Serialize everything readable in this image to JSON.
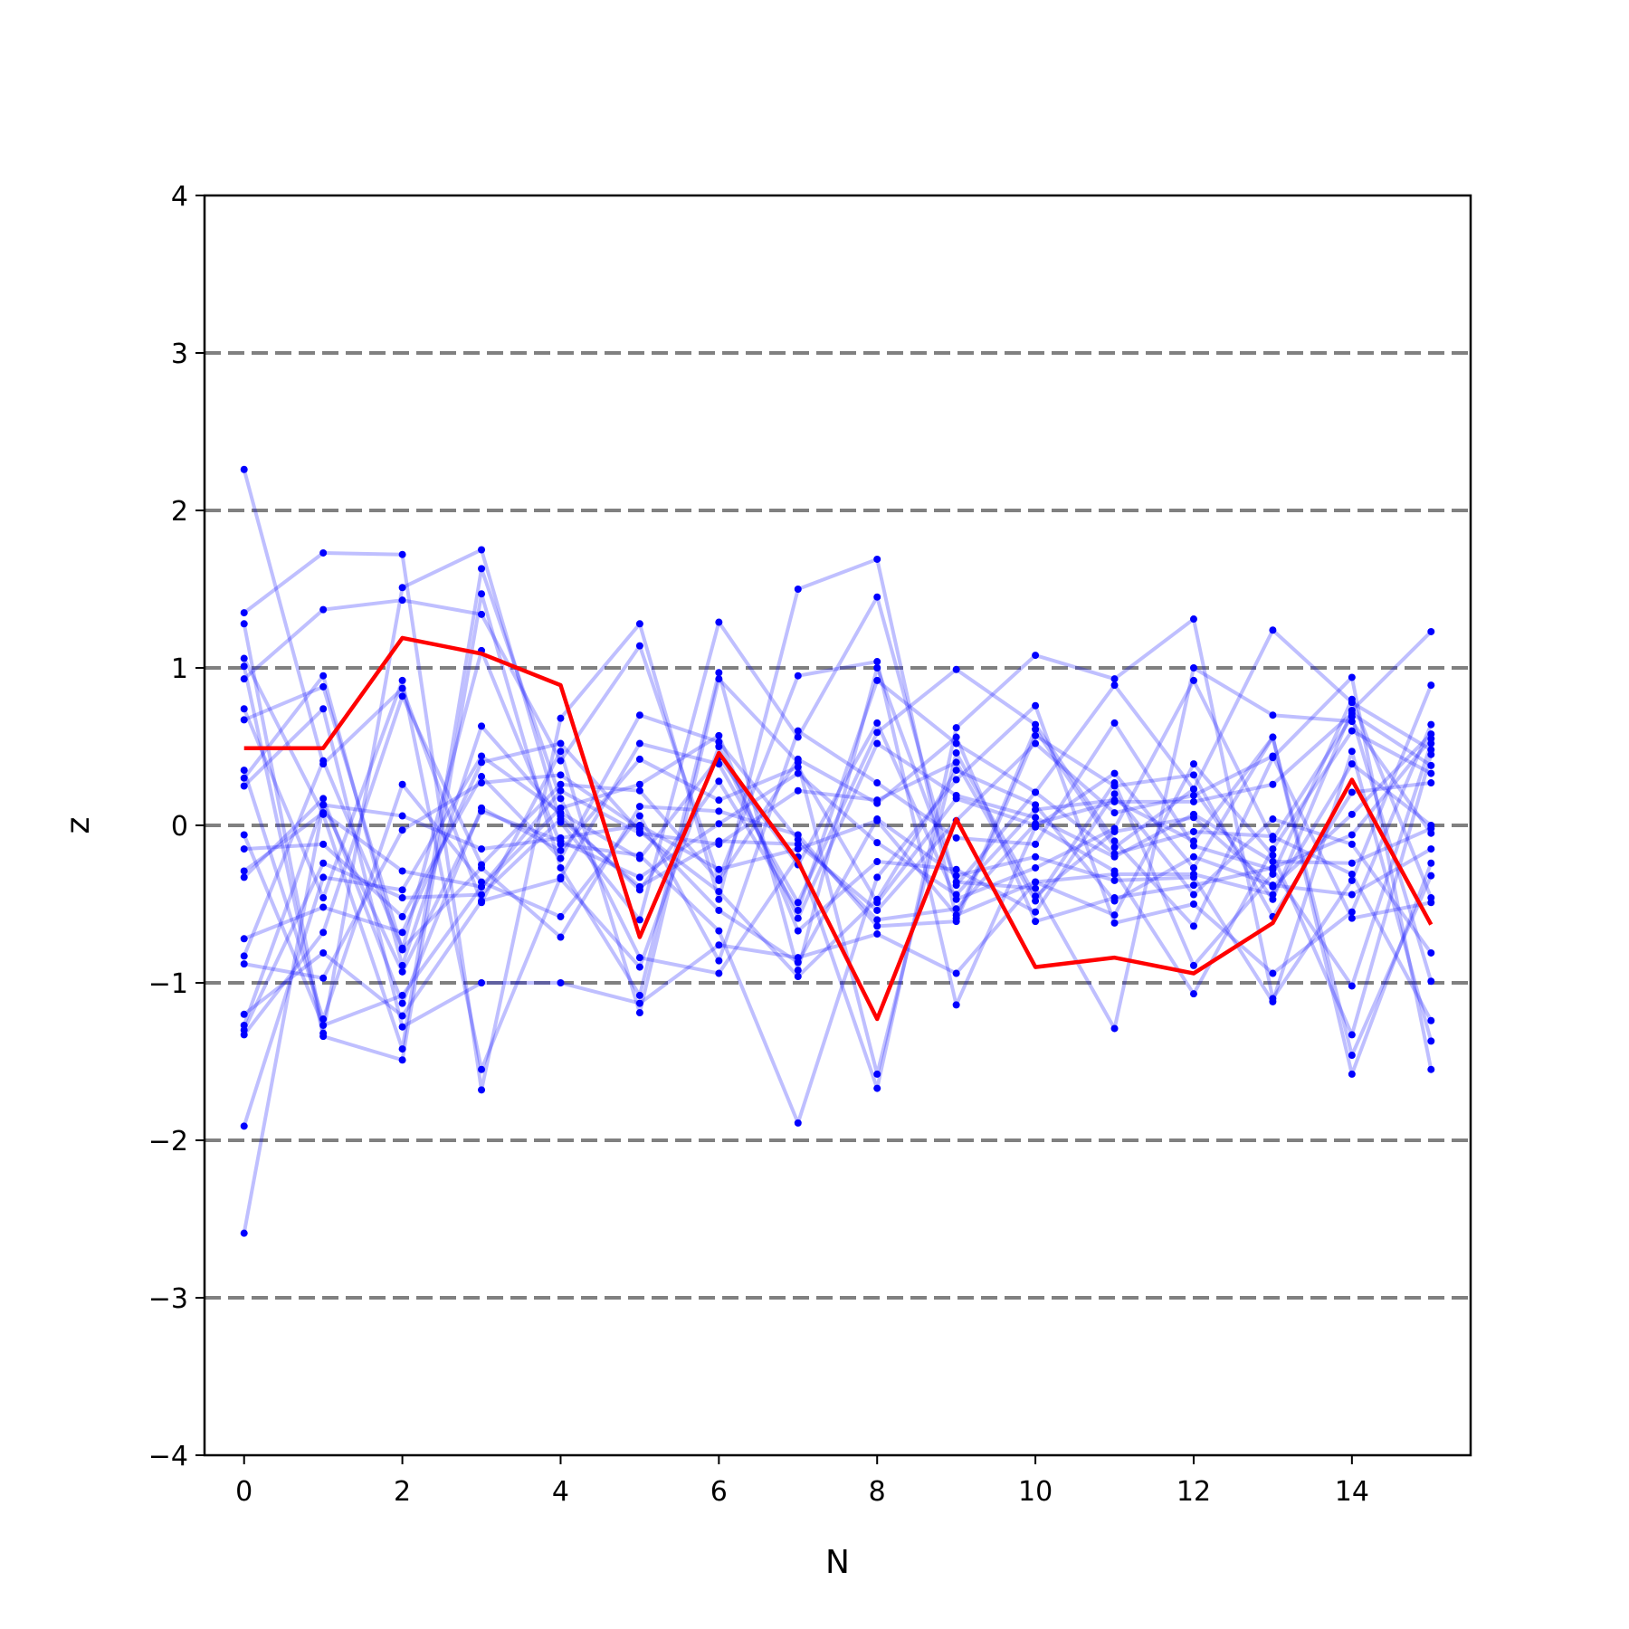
{
  "chart_data": {
    "type": "line",
    "title": "",
    "xlabel": "N",
    "ylabel": "z",
    "xlim": [
      -0.5,
      15.5
    ],
    "ylim": [
      -4,
      4
    ],
    "grid": false,
    "x_ticks": [
      0,
      2,
      4,
      6,
      8,
      10,
      12,
      14
    ],
    "x_tick_labels": [
      "0",
      "2",
      "4",
      "6",
      "8",
      "10",
      "12",
      "14"
    ],
    "y_ticks": [
      -4,
      -3,
      -2,
      -1,
      0,
      1,
      2,
      3,
      4
    ],
    "y_tick_labels": [
      "−4",
      "−3",
      "−2",
      "−1",
      "0",
      "1",
      "2",
      "3",
      "4"
    ],
    "reference_lines": [
      -3,
      -2,
      -1,
      0,
      1,
      2,
      3
    ],
    "x": [
      0,
      1,
      2,
      3,
      4,
      5,
      6,
      7,
      8,
      9,
      10,
      11,
      12,
      13,
      14,
      15
    ],
    "highlight_series": {
      "color": "#ff0000",
      "values": [
        0.49,
        0.49,
        1.19,
        1.09,
        0.89,
        -0.71,
        0.46,
        -0.23,
        -1.23,
        0.04,
        -0.9,
        -0.84,
        -0.94,
        -0.62,
        0.29,
        -0.63
      ]
    },
    "background_series": {
      "color": "#0000ff",
      "values": [
        [
          2.26,
          0.39,
          0.87,
          -0.49,
          0.47,
          -1.19,
          0.93,
          0.4,
          -1.58,
          0.46,
          -0.45,
          -0.04,
          0.05,
          -0.39,
          0.07,
          0.58
        ],
        [
          1.35,
          1.73,
          1.72,
          -1.68,
          0.68,
          1.28,
          -0.47,
          1.5,
          1.69,
          -0.59,
          0.61,
          -0.14,
          0.23,
          1.24,
          0.78,
          0.48
        ],
        [
          1.28,
          -1.32,
          1.51,
          1.75,
          0.02,
          -0.6,
          1.29,
          0.56,
          1.45,
          -0.38,
          0.21,
          0.89,
          0.23,
          -0.47,
          0.73,
          1.23
        ],
        [
          1.06,
          0.07,
          -1.42,
          1.63,
          0.17,
          -0.84,
          -0.94,
          -0.2,
          -1.67,
          0.62,
          1.08,
          0.93,
          1.31,
          -1.1,
          -0.35,
          0.89
        ],
        [
          1.01,
          -1.34,
          -1.49,
          1.47,
          -0.27,
          -1.08,
          0.97,
          -0.92,
          1.0,
          -0.36,
          -0.4,
          -1.29,
          1.0,
          0.7,
          0.66,
          -0.05
        ],
        [
          0.93,
          1.37,
          1.43,
          1.34,
          0.41,
          1.14,
          -0.34,
          0.95,
          1.04,
          -1.14,
          -0.01,
          0.33,
          -0.27,
          0.56,
          -1.58,
          -0.24
        ],
        [
          0.74,
          -0.46,
          0.92,
          -1.55,
          -0.33,
          0.52,
          0.39,
          -0.49,
          0.59,
          0.99,
          0.64,
          -0.1,
          -0.64,
          0.43,
          0.94,
          -1.55
        ],
        [
          0.67,
          0.88,
          -0.79,
          1.11,
          -0.12,
          -0.19,
          -0.67,
          -1.89,
          -0.33,
          0.29,
          0.76,
          -0.62,
          -0.5,
          -0.94,
          -0.55,
          0.64
        ],
        [
          0.35,
          -1.23,
          0.26,
          -0.36,
          -0.58,
          0.06,
          -0.86,
          0.6,
          0.27,
          -0.08,
          -0.12,
          0.65,
          -0.13,
          -0.28,
          -1.02,
          0.52
        ],
        [
          0.3,
          0.95,
          -0.89,
          0.63,
          0.06,
          -0.41,
          0.28,
          -0.54,
          0.92,
          0.52,
          0.21,
          -0.18,
          -0.04,
          -0.07,
          -0.31,
          -1.24
        ],
        [
          0.25,
          0.74,
          -1.28,
          -1.0,
          -1.0,
          -1.13,
          -0.76,
          -0.84,
          -0.69,
          -0.94,
          -0.36,
          -0.57,
          0.39,
          -0.19,
          -1.33,
          0.45
        ],
        [
          -0.06,
          -1.27,
          -1.08,
          -0.39,
          0.22,
          -0.05,
          -0.12,
          0.22,
          0.16,
          0.4,
          -0.48,
          0.27,
          -0.89,
          -0.31,
          0.8,
          -0.46
        ],
        [
          -0.15,
          -0.12,
          -0.58,
          0.31,
          -0.21,
          0.7,
          0.53,
          -0.09,
          -0.6,
          -0.53,
          0.01,
          0.15,
          0.15,
          0.26,
          0.71,
          0.38
        ],
        [
          -0.29,
          0.08,
          -0.29,
          -0.39,
          0.11,
          0.26,
          0.57,
          -0.67,
          -0.23,
          -0.28,
          -0.55,
          0.2,
          -0.44,
          0.04,
          -0.12,
          -0.81
        ],
        [
          -0.33,
          0.17,
          -1.13,
          0.11,
          -0.16,
          0.42,
          0.16,
          0.37,
          -0.49,
          0.17,
          0.0,
          -0.29,
          -1.07,
          -0.15,
          0.6,
          0.33
        ],
        [
          -0.72,
          -0.52,
          -0.68,
          0.4,
          0.52,
          -0.04,
          -0.42,
          -0.96,
          -0.47,
          0.35,
          0.13,
          -0.48,
          -0.2,
          -0.38,
          -0.44,
          -0.15
        ],
        [
          -0.83,
          0.41,
          -0.78,
          -0.27,
          -0.71,
          0.12,
          0.09,
          -0.06,
          -0.64,
          -0.61,
          0.57,
          0.25,
          0.32,
          -0.58,
          0.21,
          0.27
        ],
        [
          -0.88,
          -0.97,
          -0.03,
          0.27,
          0.32,
          -0.02,
          -0.54,
          -0.87,
          0.04,
          -0.32,
          -0.2,
          -0.35,
          -0.33,
          -1.12,
          0.47,
          -1.37
        ],
        [
          -1.2,
          -0.81,
          -1.21,
          -0.48,
          -0.34,
          -0.9,
          0.5,
          -0.59,
          0.52,
          0.19,
          0.05,
          -0.2,
          0.07,
          -0.23,
          -0.24,
          -0.02
        ],
        [
          -1.27,
          0.13,
          -0.93,
          0.09,
          -0.1,
          -0.33,
          0.01,
          0.33,
          -0.11,
          -0.44,
          0.1,
          0.16,
          -0.1,
          0.56,
          -1.46,
          -0.32
        ],
        [
          -1.3,
          -0.24,
          -0.46,
          -0.44,
          0.04,
          -0.39,
          -0.1,
          -0.12,
          -0.54,
          0.03,
          0.52,
          0.08,
          0.19,
          0.44,
          -0.59,
          -0.49
        ],
        [
          -1.33,
          -0.68,
          0.82,
          -0.25,
          0.26,
          0.22,
          -0.35,
          0.42,
          0.14,
          0.56,
          -0.61,
          -0.46,
          -0.38,
          -0.27,
          -0.06,
          0.55
        ],
        [
          -1.91,
          -0.33,
          -0.41,
          0.44,
          0.08,
          -0.21,
          0.43,
          -0.25,
          0.65,
          -0.47,
          -0.27,
          -0.02,
          0.92,
          -0.09,
          0.69,
          -0.99
        ],
        [
          -2.59,
          0.13,
          0.06,
          -0.15,
          -0.08,
          0.0,
          -0.28,
          -0.15,
          0.03,
          -0.57,
          -0.36,
          -0.31,
          -0.31,
          -0.44,
          0.39,
          0.0
        ]
      ]
    }
  }
}
